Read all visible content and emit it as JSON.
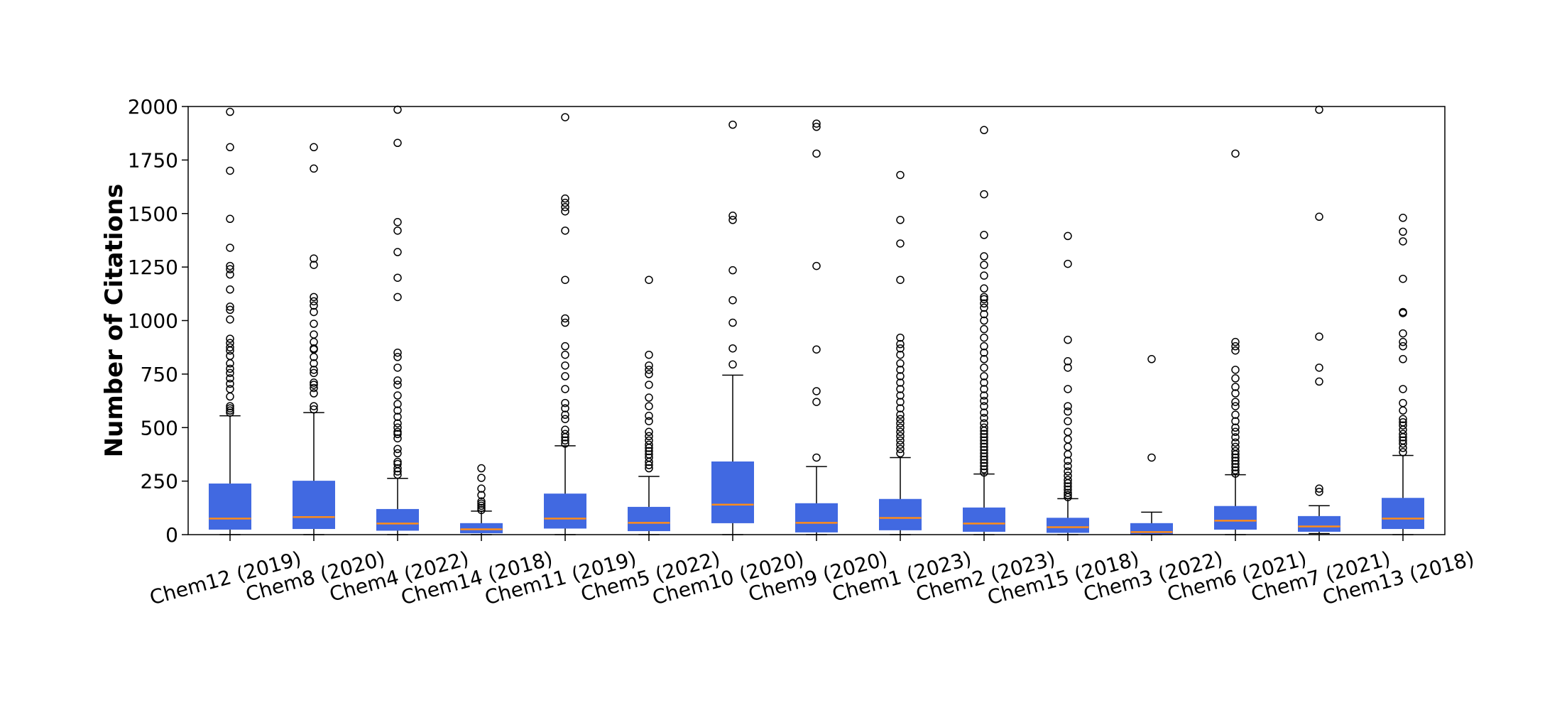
{
  "chart_data": {
    "type": "box",
    "title": "",
    "xlabel": "",
    "ylabel": "Number of Citations",
    "ylim": [
      0,
      2000
    ],
    "yticks": [
      0,
      250,
      500,
      750,
      1000,
      1250,
      1500,
      1750,
      2000
    ],
    "grid": false,
    "legend": "none",
    "colors": {
      "box_fill": "#4169e1",
      "median": "#ff8c1a",
      "whisker": "#000000",
      "flier_edge": "#000000"
    },
    "categories": [
      "Chem12 (2019)",
      "Chem8 (2020)",
      "Chem4 (2022)",
      "Chem14 (2018)",
      "Chem11 (2019)",
      "Chem5 (2022)",
      "Chem10 (2020)",
      "Chem9 (2020)",
      "Chem1 (2023)",
      "Chem2 (2023)",
      "Chem15 (2018)",
      "Chem3 (2022)",
      "Chem6 (2021)",
      "Chem7 (2021)",
      "Chem13 (2018)"
    ],
    "boxes": [
      {
        "label": "Chem12 (2019)",
        "whislo": 0,
        "q1": 25,
        "median": 75,
        "q3": 237,
        "whishi": 555,
        "fliers": [
          570,
          580,
          590,
          600,
          645,
          680,
          705,
          730,
          755,
          775,
          800,
          835,
          860,
          875,
          895,
          915,
          1005,
          1050,
          1065,
          1145,
          1215,
          1240,
          1255,
          1340,
          1475,
          1700,
          1810,
          1975
        ]
      },
      {
        "label": "Chem8 (2020)",
        "whislo": 0,
        "q1": 28,
        "median": 82,
        "q3": 250,
        "whishi": 570,
        "fliers": [
          585,
          600,
          660,
          685,
          700,
          710,
          755,
          770,
          800,
          830,
          865,
          870,
          900,
          935,
          985,
          1040,
          1070,
          1090,
          1110,
          1260,
          1290,
          1710,
          1810
        ]
      },
      {
        "label": "Chem4 (2022)",
        "whislo": 0,
        "q1": 20,
        "median": 52,
        "q3": 118,
        "whishi": 263,
        "fliers": [
          280,
          295,
          310,
          330,
          340,
          380,
          400,
          450,
          470,
          480,
          500,
          520,
          550,
          580,
          610,
          650,
          700,
          720,
          780,
          830,
          850,
          1110,
          1200,
          1320,
          1420,
          1460,
          1830,
          1985
        ]
      },
      {
        "label": "Chem14 (2018)",
        "whislo": 0,
        "q1": 8,
        "median": 25,
        "q3": 52,
        "whishi": 110,
        "fliers": [
          115,
          125,
          135,
          145,
          155,
          185,
          215,
          265,
          310
        ]
      },
      {
        "label": "Chem11 (2019)",
        "whislo": 0,
        "q1": 30,
        "median": 75,
        "q3": 190,
        "whishi": 415,
        "fliers": [
          425,
          440,
          455,
          470,
          490,
          540,
          560,
          590,
          615,
          680,
          740,
          790,
          840,
          880,
          990,
          1010,
          1190,
          1420,
          1510,
          1530,
          1550,
          1570,
          1950
        ]
      },
      {
        "label": "Chem5 (2022)",
        "whislo": 0,
        "q1": 18,
        "median": 55,
        "q3": 128,
        "whishi": 272,
        "fliers": [
          310,
          325,
          340,
          360,
          375,
          390,
          405,
          420,
          440,
          460,
          480,
          530,
          555,
          600,
          640,
          700,
          750,
          770,
          790,
          840,
          1190
        ]
      },
      {
        "label": "Chem10 (2020)",
        "whislo": 0,
        "q1": 55,
        "median": 140,
        "q3": 340,
        "whishi": 745,
        "fliers": [
          795,
          870,
          990,
          1095,
          1235,
          1470,
          1490,
          1915
        ]
      },
      {
        "label": "Chem9 (2020)",
        "whislo": 0,
        "q1": 12,
        "median": 55,
        "q3": 145,
        "whishi": 318,
        "fliers": [
          360,
          620,
          670,
          865,
          1255,
          1780,
          1905,
          1920
        ]
      },
      {
        "label": "Chem1 (2023)",
        "whislo": 0,
        "q1": 22,
        "median": 78,
        "q3": 165,
        "whishi": 360,
        "fliers": [
          380,
          400,
          420,
          440,
          460,
          480,
          500,
          520,
          540,
          560,
          590,
          620,
          650,
          680,
          710,
          740,
          770,
          800,
          840,
          870,
          890,
          920,
          1190,
          1360,
          1470,
          1680
        ]
      },
      {
        "label": "Chem2 (2023)",
        "whislo": 0,
        "q1": 15,
        "median": 52,
        "q3": 125,
        "whishi": 283,
        "fliers": [
          290,
          305,
          320,
          335,
          350,
          365,
          380,
          395,
          410,
          425,
          440,
          455,
          470,
          485,
          500,
          520,
          545,
          570,
          600,
          625,
          650,
          680,
          710,
          740,
          780,
          820,
          850,
          880,
          920,
          960,
          1000,
          1030,
          1060,
          1080,
          1100,
          1110,
          1150,
          1210,
          1260,
          1300,
          1400,
          1590,
          1890
        ]
      },
      {
        "label": "Chem15 (2018)",
        "whislo": 0,
        "q1": 10,
        "median": 35,
        "q3": 77,
        "whishi": 168,
        "fliers": [
          175,
          185,
          195,
          210,
          225,
          240,
          255,
          275,
          295,
          320,
          345,
          375,
          410,
          445,
          480,
          530,
          575,
          600,
          680,
          780,
          810,
          910,
          1265,
          1395
        ]
      },
      {
        "label": "Chem3 (2022)",
        "whislo": 0,
        "q1": 3,
        "median": 12,
        "q3": 52,
        "whishi": 105,
        "fliers": [
          360,
          820
        ]
      },
      {
        "label": "Chem6 (2021)",
        "whislo": 0,
        "q1": 25,
        "median": 65,
        "q3": 132,
        "whishi": 280,
        "fliers": [
          285,
          300,
          315,
          330,
          345,
          360,
          375,
          390,
          410,
          430,
          455,
          480,
          500,
          530,
          560,
          600,
          620,
          660,
          690,
          730,
          770,
          860,
          880,
          900,
          1780
        ]
      },
      {
        "label": "Chem7 (2021)",
        "whislo": 5,
        "q1": 15,
        "median": 38,
        "q3": 85,
        "whishi": 135,
        "fliers": [
          200,
          215,
          715,
          780,
          925,
          1485,
          1985
        ]
      },
      {
        "label": "Chem13 (2018)",
        "whislo": 0,
        "q1": 28,
        "median": 75,
        "q3": 170,
        "whishi": 370,
        "fliers": [
          385,
          405,
          425,
          440,
          455,
          470,
          490,
          510,
          525,
          540,
          580,
          615,
          680,
          820,
          880,
          900,
          940,
          1035,
          1040,
          1195,
          1370,
          1415,
          1480
        ]
      }
    ]
  }
}
